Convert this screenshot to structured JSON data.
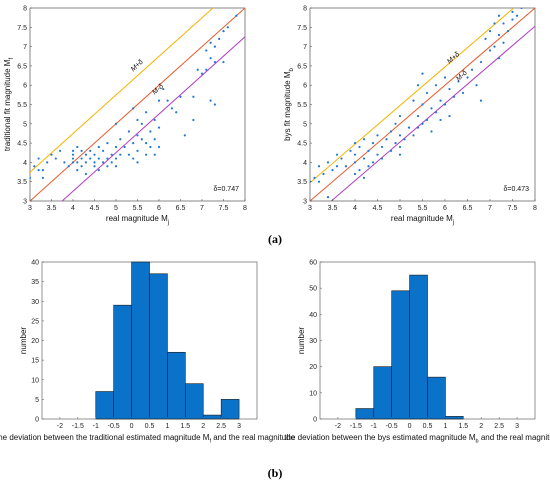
{
  "panel_labels": {
    "a": "(a)",
    "b": "(b)"
  },
  "colors": {
    "points": "#1f77d4",
    "bar_fill": "#0b72c9",
    "line_upper": "#f5b400",
    "line_mid": "#e8592a",
    "line_lower": "#b03ac2"
  },
  "chart_data": [
    {
      "type": "scatter",
      "xlabel": "real magnitude M",
      "xlabel_sub": "j",
      "ylabel": "traditional fit magnitude M",
      "ylabel_sub": "f",
      "xlim": [
        3,
        8
      ],
      "ylim": [
        3,
        8
      ],
      "xticks": [
        "3",
        "3.5",
        "4",
        "4.5",
        "5",
        "5.5",
        "6",
        "6.5",
        "7",
        "7.5",
        "8"
      ],
      "yticks": [
        "3",
        "3.5",
        "4",
        "4.5",
        "5",
        "5.5",
        "6",
        "6.5",
        "7",
        "7.5",
        "8"
      ],
      "delta": 0.747,
      "annotation": "δ=0.747",
      "line_labels": [
        "M+δ",
        "M-δ"
      ],
      "points": [
        [
          3.0,
          3.6
        ],
        [
          3.1,
          3.9
        ],
        [
          3.2,
          3.8
        ],
        [
          3.2,
          4.1
        ],
        [
          3.3,
          3.8
        ],
        [
          3.3,
          3.6
        ],
        [
          3.4,
          4.0
        ],
        [
          3.5,
          4.2
        ],
        [
          3.6,
          4.1
        ],
        [
          3.7,
          4.3
        ],
        [
          3.8,
          4.0
        ],
        [
          3.9,
          3.9
        ],
        [
          4.0,
          4.1
        ],
        [
          4.0,
          4.3
        ],
        [
          4.0,
          4.0
        ],
        [
          4.0,
          4.2
        ],
        [
          4.1,
          3.8
        ],
        [
          4.1,
          4.4
        ],
        [
          4.1,
          4.0
        ],
        [
          4.2,
          4.3
        ],
        [
          4.2,
          3.9
        ],
        [
          4.2,
          4.1
        ],
        [
          4.3,
          4.0
        ],
        [
          4.3,
          4.2
        ],
        [
          4.3,
          3.7
        ],
        [
          4.4,
          4.1
        ],
        [
          4.4,
          4.3
        ],
        [
          4.5,
          4.0
        ],
        [
          4.5,
          4.2
        ],
        [
          4.5,
          3.9
        ],
        [
          4.6,
          4.1
        ],
        [
          4.6,
          4.4
        ],
        [
          4.6,
          3.8
        ],
        [
          4.7,
          4.0
        ],
        [
          4.7,
          4.3
        ],
        [
          4.8,
          4.1
        ],
        [
          4.8,
          4.5
        ],
        [
          4.8,
          3.9
        ],
        [
          4.9,
          4.2
        ],
        [
          4.9,
          4.0
        ],
        [
          5.0,
          4.1
        ],
        [
          5.0,
          4.4
        ],
        [
          5.0,
          3.9
        ],
        [
          5.0,
          5.0
        ],
        [
          5.1,
          4.2
        ],
        [
          5.1,
          4.6
        ],
        [
          5.2,
          4.4
        ],
        [
          5.3,
          4.8
        ],
        [
          5.3,
          4.2
        ],
        [
          5.4,
          5.4
        ],
        [
          5.4,
          4.5
        ],
        [
          5.4,
          4.1
        ],
        [
          5.5,
          5.1
        ],
        [
          5.5,
          4.7
        ],
        [
          5.5,
          4.3
        ],
        [
          5.5,
          4.0
        ],
        [
          5.6,
          5.0
        ],
        [
          5.6,
          4.6
        ],
        [
          5.7,
          5.3
        ],
        [
          5.7,
          4.5
        ],
        [
          5.7,
          4.2
        ],
        [
          5.8,
          4.8
        ],
        [
          5.8,
          4.4
        ],
        [
          5.9,
          5.1
        ],
        [
          5.9,
          4.6
        ],
        [
          5.9,
          4.2
        ],
        [
          6.0,
          5.6
        ],
        [
          6.0,
          4.9
        ],
        [
          6.0,
          4.4
        ],
        [
          6.1,
          5.9
        ],
        [
          6.2,
          5.6
        ],
        [
          6.3,
          5.4
        ],
        [
          6.4,
          5.3
        ],
        [
          6.5,
          5.7
        ],
        [
          6.6,
          4.7
        ],
        [
          6.8,
          5.1
        ],
        [
          6.8,
          5.7
        ],
        [
          6.9,
          6.4
        ],
        [
          7.0,
          6.3
        ],
        [
          7.1,
          6.9
        ],
        [
          7.1,
          6.4
        ],
        [
          7.2,
          6.7
        ],
        [
          7.2,
          7.1
        ],
        [
          7.2,
          5.6
        ],
        [
          7.3,
          5.5
        ],
        [
          7.3,
          6.6
        ],
        [
          7.3,
          7.0
        ],
        [
          7.4,
          7.2
        ],
        [
          7.5,
          6.6
        ],
        [
          7.5,
          7.4
        ],
        [
          7.6,
          7.5
        ],
        [
          7.8,
          7.8
        ]
      ]
    },
    {
      "type": "scatter",
      "xlabel": "real magnitude M",
      "xlabel_sub": "j",
      "ylabel": "bys fit magnitude M",
      "ylabel_sub": "b",
      "xlim": [
        3,
        8
      ],
      "ylim": [
        3,
        8
      ],
      "xticks": [
        "3",
        "3.5",
        "4",
        "4.5",
        "5",
        "5.5",
        "6",
        "6.5",
        "7",
        "7.5",
        "8"
      ],
      "yticks": [
        "3",
        "3.5",
        "4",
        "4.5",
        "5",
        "5.5",
        "6",
        "6.5",
        "7",
        "7.5",
        "8"
      ],
      "delta": 0.473,
      "annotation": "δ=0.473",
      "line_labels": [
        "M+δ",
        "M-δ"
      ],
      "points": [
        [
          3.0,
          3.5
        ],
        [
          3.1,
          3.6
        ],
        [
          3.2,
          3.9
        ],
        [
          3.2,
          3.5
        ],
        [
          3.3,
          3.7
        ],
        [
          3.4,
          4.0
        ],
        [
          3.5,
          3.8
        ],
        [
          3.6,
          4.2
        ],
        [
          3.6,
          3.9
        ],
        [
          3.7,
          4.1
        ],
        [
          3.8,
          3.9
        ],
        [
          3.9,
          4.3
        ],
        [
          4.0,
          4.0
        ],
        [
          4.0,
          4.5
        ],
        [
          4.0,
          3.7
        ],
        [
          4.0,
          4.2
        ],
        [
          4.1,
          3.8
        ],
        [
          4.1,
          4.4
        ],
        [
          4.2,
          4.1
        ],
        [
          4.2,
          4.6
        ],
        [
          4.3,
          3.9
        ],
        [
          4.3,
          4.3
        ],
        [
          4.4,
          4.5
        ],
        [
          4.4,
          4.0
        ],
        [
          4.5,
          4.2
        ],
        [
          4.5,
          4.7
        ],
        [
          4.6,
          4.4
        ],
        [
          4.6,
          4.1
        ],
        [
          4.7,
          4.6
        ],
        [
          4.8,
          4.3
        ],
        [
          4.8,
          4.8
        ],
        [
          4.9,
          4.5
        ],
        [
          4.9,
          5.0
        ],
        [
          5.0,
          4.4
        ],
        [
          5.0,
          4.7
        ],
        [
          5.0,
          5.2
        ],
        [
          5.1,
          4.6
        ],
        [
          5.2,
          4.9
        ],
        [
          5.3,
          5.6
        ],
        [
          5.3,
          4.7
        ],
        [
          5.4,
          6.0
        ],
        [
          5.4,
          5.2
        ],
        [
          5.4,
          4.9
        ],
        [
          5.5,
          6.3
        ],
        [
          5.5,
          5.5
        ],
        [
          5.5,
          5.0
        ],
        [
          5.6,
          5.8
        ],
        [
          5.6,
          5.1
        ],
        [
          5.7,
          5.4
        ],
        [
          5.7,
          4.8
        ],
        [
          5.8,
          6.0
        ],
        [
          5.8,
          5.3
        ],
        [
          5.9,
          5.6
        ],
        [
          5.9,
          5.1
        ],
        [
          6.0,
          6.2
        ],
        [
          6.0,
          5.5
        ],
        [
          6.1,
          5.9
        ],
        [
          6.1,
          5.2
        ],
        [
          6.2,
          5.7
        ],
        [
          6.3,
          6.1
        ],
        [
          6.4,
          5.8
        ],
        [
          6.5,
          6.2
        ],
        [
          6.6,
          6.4
        ],
        [
          6.7,
          6.0
        ],
        [
          6.8,
          5.6
        ],
        [
          6.8,
          6.6
        ],
        [
          6.9,
          7.2
        ],
        [
          7.0,
          7.4
        ],
        [
          7.0,
          6.9
        ],
        [
          7.1,
          7.6
        ],
        [
          7.1,
          7.0
        ],
        [
          7.2,
          6.7
        ],
        [
          7.2,
          7.3
        ],
        [
          7.2,
          7.8
        ],
        [
          7.3,
          7.1
        ],
        [
          7.3,
          7.6
        ],
        [
          7.4,
          7.4
        ],
        [
          7.5,
          7.7
        ],
        [
          7.5,
          7.9
        ],
        [
          7.6,
          7.8
        ],
        [
          7.7,
          8.0
        ],
        [
          3.4,
          3.1
        ],
        [
          4.2,
          3.6
        ],
        [
          5.0,
          4.2
        ]
      ]
    },
    {
      "type": "bar",
      "xlabel": "the deviation between the traditional estimated magnitude M",
      "xlabel_sub": "f",
      "xlabel_tail": " and the real magnitude",
      "ylabel": "number",
      "xlim": [
        -2.5,
        3.5
      ],
      "ylim": [
        0,
        40
      ],
      "xticks": [
        "-2",
        "-1.5",
        "-1",
        "-0.5",
        "0",
        "0.5",
        "1",
        "1.5",
        "2",
        "2.5",
        "3"
      ],
      "yticks": [
        "0",
        "5",
        "10",
        "15",
        "20",
        "25",
        "30",
        "35",
        "40"
      ],
      "bin_width": 0.5,
      "categories": [
        "-0.75",
        "-0.25",
        "0.25",
        "0.75",
        "1.25",
        "1.75",
        "2.25",
        "2.75"
      ],
      "bin_centers": [
        -0.75,
        -0.25,
        0.25,
        0.75,
        1.25,
        1.75,
        2.25,
        2.75
      ],
      "values": [
        7,
        29,
        40,
        37,
        17,
        9,
        1,
        5
      ]
    },
    {
      "type": "bar",
      "xlabel": "the deviation between the bys estimated magnitude M",
      "xlabel_sub": "b",
      "xlabel_tail": " and the real magnitude",
      "ylabel": "number",
      "xlim": [
        -2.5,
        3.5
      ],
      "ylim": [
        0,
        60
      ],
      "xticks": [
        "-2",
        "-1.5",
        "-1",
        "-0.5",
        "0",
        "0.5",
        "1",
        "1.5",
        "2",
        "2.5",
        "3"
      ],
      "yticks": [
        "0",
        "10",
        "20",
        "30",
        "40",
        "50",
        "60"
      ],
      "bin_width": 0.5,
      "categories": [
        "-1.25",
        "-0.75",
        "-0.25",
        "0.25",
        "0.75",
        "1.25"
      ],
      "bin_centers": [
        -1.25,
        -0.75,
        -0.25,
        0.25,
        0.75,
        1.25
      ],
      "values": [
        4,
        20,
        49,
        55,
        16,
        1
      ]
    }
  ]
}
